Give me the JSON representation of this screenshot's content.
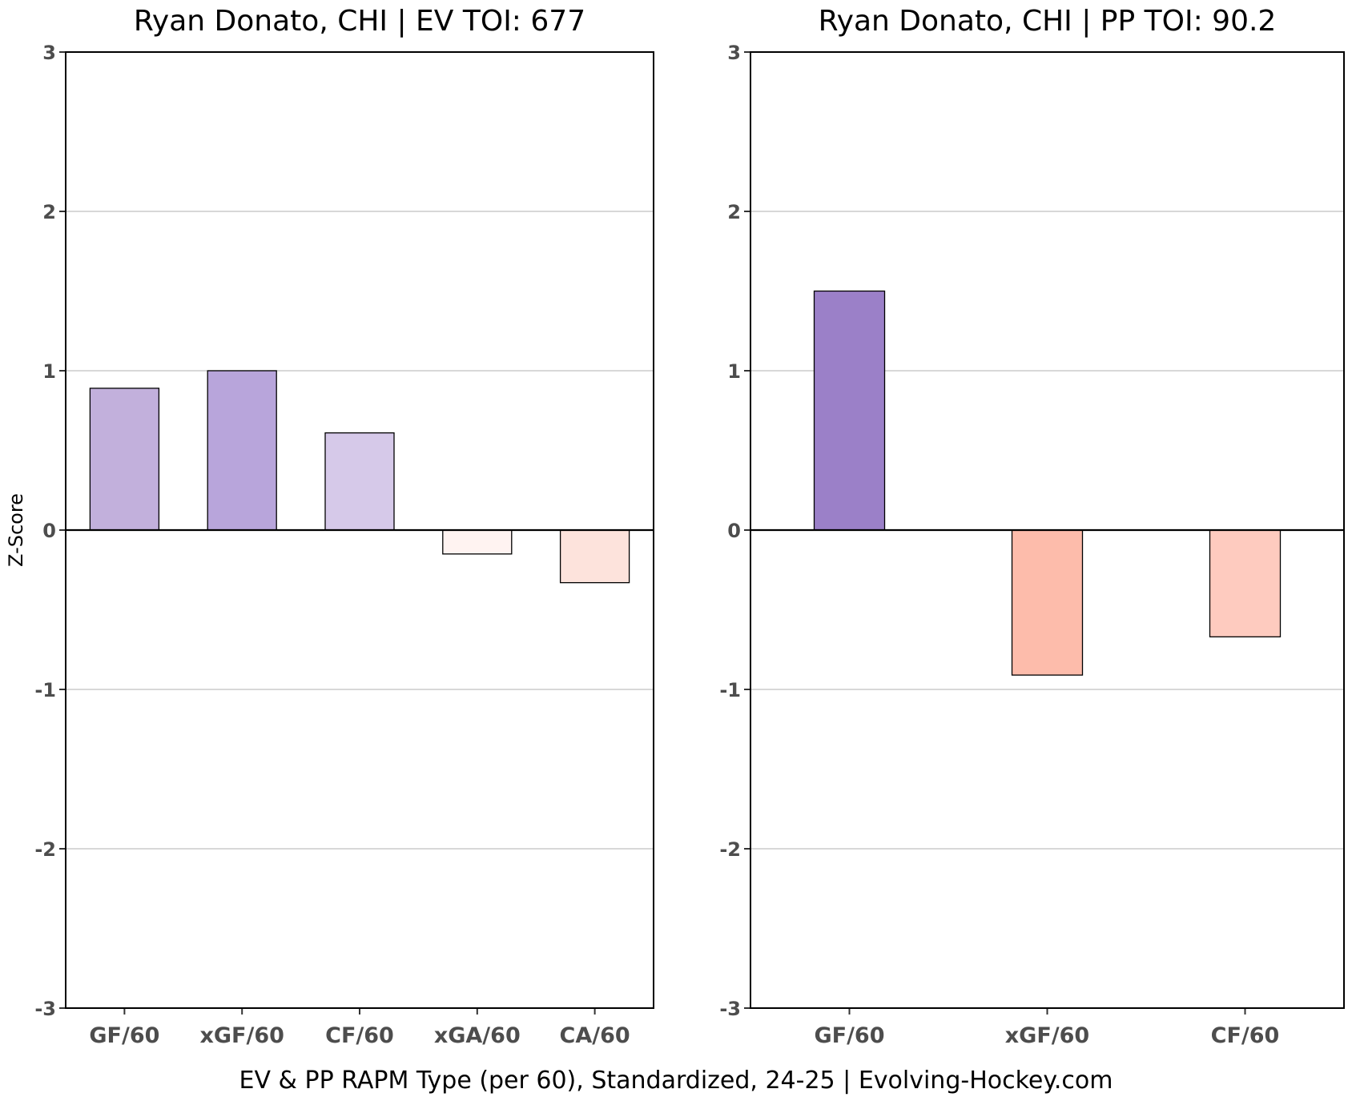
{
  "caption": "EV & PP RAPM Type (per 60), Standardized, 24-25    |    Evolving-Hockey.com",
  "chart_data": [
    {
      "type": "bar",
      "title": "Ryan Donato, CHI  |  EV TOI: 677",
      "ylabel": "Z-Score",
      "xlabel": "",
      "ylim": [
        -3,
        3
      ],
      "yticks": [
        3,
        2,
        1,
        0,
        -1,
        -2,
        -3
      ],
      "grid": "horizontal",
      "categories": [
        "GF/60",
        "xGF/60",
        "CF/60",
        "xGA/60",
        "CA/60"
      ],
      "values": [
        0.89,
        1.0,
        0.61,
        -0.15,
        -0.33
      ],
      "colors": [
        "#c2b0dc",
        "#b8a5db",
        "#d6c9e9",
        "#fff3f1",
        "#fde3dc"
      ]
    },
    {
      "type": "bar",
      "title": "Ryan Donato, CHI  |  PP TOI: 90.2",
      "ylabel": "",
      "xlabel": "",
      "ylim": [
        -3,
        3
      ],
      "yticks": [
        3,
        2,
        1,
        0,
        -1,
        -2,
        -3
      ],
      "grid": "horizontal",
      "categories": [
        "GF/60",
        "xGF/60",
        "CF/60"
      ],
      "values": [
        1.5,
        -0.91,
        -0.67
      ],
      "colors": [
        "#9b80c8",
        "#fdbcab",
        "#fecbbf"
      ]
    }
  ]
}
